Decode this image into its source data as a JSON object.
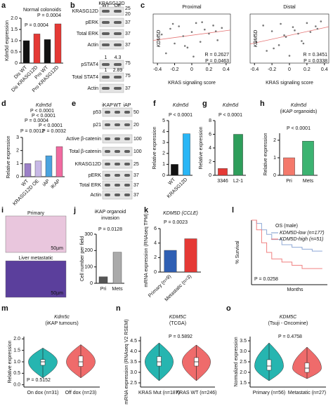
{
  "chart_data": [
    {
      "type": "bar",
      "panel": "a",
      "title": "Normal colonoids",
      "ylabel": "Kdm5d expression",
      "categories": [
        "Dis WT",
        "Dis KRASG12D",
        "Pro WT",
        "Pro KRASG12D"
      ],
      "values": [
        1.0,
        1.3,
        1.05,
        1.75
      ],
      "colors": [
        "#111111",
        "#e53935",
        "#111111",
        "#e53935"
      ],
      "ylim": [
        0,
        2
      ],
      "yticks": [
        0,
        0.5,
        {
          "value": 1,
          "label": "1.0"
        },
        1.5,
        {
          "value": 2,
          "label": "2.0"
        }
      ],
      "annotations": [
        "P = 0.0004",
        "P = 0.0004"
      ]
    },
    {
      "type": "scatter",
      "panel": "c",
      "title": "Proximal",
      "xlabel": "KRAS signaling score",
      "ylabel": "KDM5D",
      "color": "#777777",
      "x": [
        -0.35,
        -0.3,
        -0.25,
        -0.2,
        -0.15,
        -0.1,
        -0.05,
        0,
        0.05,
        0.1,
        0.15,
        0.2,
        0.25,
        0.3,
        0.35,
        -0.22,
        0.02,
        0.12,
        0.28,
        -0.08
      ],
      "y": [
        0.5,
        -1.8,
        1.2,
        -0.6,
        1.5,
        0.3,
        -1.1,
        0.8,
        1.9,
        -0.4,
        1.1,
        0.6,
        1.6,
        -0.2,
        1.3,
        1.8,
        -2.2,
        2.0,
        0.9,
        -0.9
      ],
      "xlim": [
        -0.45,
        0.45
      ],
      "xticks": [
        -0.4,
        -0.2,
        0,
        0.2,
        0.4
      ],
      "ylim": [
        -3,
        3
      ],
      "annotations": [
        "R = 0.2627",
        "P = 0.0463"
      ]
    },
    {
      "type": "scatter",
      "title": "Distal",
      "xlabel": "KRAS signaling score",
      "ylabel": "KDM5D",
      "color": "#777777",
      "x": [
        -0.38,
        -0.3,
        -0.26,
        -0.2,
        -0.12,
        -0.1,
        -0.04,
        0,
        0.04,
        0.1,
        0.14,
        0.2,
        0.24,
        0.3,
        0.36,
        -0.18,
        0.06,
        0.16,
        0.32,
        -0.06
      ],
      "y": [
        -0.4,
        1.6,
        -1.5,
        0.9,
        -0.8,
        1.8,
        0.2,
        -2.1,
        1.4,
        0.6,
        -0.3,
        1.9,
        0.8,
        1.5,
        2.1,
        -1.2,
        1.0,
        -0.6,
        1.2,
        0.4
      ],
      "xlim": [
        -0.45,
        0.45
      ],
      "xticks": [
        -0.4,
        -0.2,
        0,
        0.2,
        0.4
      ],
      "ylim": [
        -3,
        3
      ],
      "annotations": [
        "R = 0.3451",
        "P = 0.0338"
      ]
    },
    {
      "type": "bar",
      "panel": "d",
      "title": "Kdm5d",
      "ylabel": "Relative expression",
      "categories": [
        "WT",
        "KRASG12D OE",
        "iAP",
        "iKAP"
      ],
      "values": [
        1.0,
        1.2,
        1.6,
        2.3
      ],
      "colors": [
        "#9b7fc7",
        "#c7b8e6",
        "#4aa3df",
        "#f06aa0"
      ],
      "ylim": [
        0,
        3
      ],
      "yticks": [
        0,
        1,
        2,
        3
      ],
      "annotations": [
        "P < 0.0001",
        "P < 0.0001",
        "P = 0.0004",
        "P < 0.0001",
        "P = 0.0012",
        "P = 0.0032"
      ]
    },
    {
      "type": "bar",
      "panel": "f",
      "title": "Kdm5d",
      "ylabel": "Relative expression",
      "categories": [
        "WT",
        "KRASG12D"
      ],
      "values": [
        1.0,
        3.8
      ],
      "colors": [
        "#111111",
        "#29b6f6"
      ],
      "ylim": [
        0,
        5
      ],
      "yticks": [
        0,
        1,
        2,
        3,
        4,
        5
      ],
      "annotations": [
        "P < 0.0001"
      ]
    },
    {
      "type": "bar",
      "panel": "g",
      "title": "Kdm5d",
      "ylabel": "Relative expression",
      "categories": [
        "3346",
        "L2-1"
      ],
      "values": [
        1.0,
        6.0
      ],
      "colors": [
        "#e53935",
        "#2e9e5b"
      ],
      "ylim": [
        0,
        8
      ],
      "yticks": [
        0,
        2,
        4,
        6,
        8
      ],
      "annotations": [
        "P < 0.0001"
      ]
    },
    {
      "type": "bar",
      "panel": "h",
      "title": "Kdm5d",
      "subtitle": "(iKAP organoids)",
      "ylabel": "Relative expression",
      "categories": [
        "Pri",
        "Mets"
      ],
      "values": [
        1.0,
        1.95
      ],
      "colors": [
        "#f4796b",
        "#3cb371"
      ],
      "ylim": [
        0,
        2.4
      ],
      "yticks": [
        0,
        1,
        2
      ],
      "annotations": [
        "P < 0.0001"
      ]
    },
    {
      "type": "bar",
      "panel": "j",
      "title": "iKAP organoid",
      "subtitle": "invasion",
      "ylabel": "Cell number per field",
      "categories": [
        "Pri",
        "Mets"
      ],
      "values": [
        40,
        190
      ],
      "colors": [
        "#555555",
        "#aaaaaa"
      ],
      "ylim": [
        0,
        300
      ],
      "yticks": [
        0,
        100,
        200,
        300
      ],
      "annotations": [
        "P = 0.0128"
      ]
    },
    {
      "type": "bar",
      "panel": "k",
      "title": "KDM5D (CCLE)",
      "ylabel": "mRNA expression (RNAseq TPM)",
      "categories": [
        "Primary (n=9)",
        "Metastatic (n=3)"
      ],
      "values": [
        3.0,
        4.6
      ],
      "colors": [
        "#2f5fb3",
        "#e53935"
      ],
      "ylim": [
        0,
        6
      ],
      "yticks": [
        0,
        2,
        4,
        6
      ],
      "annotations": [
        "P = 0.0023"
      ]
    },
    {
      "type": "line",
      "panel": "l",
      "title": "OS (male)",
      "ylabel": "% Survival",
      "xlabel": "Months",
      "xlim": [
        0,
        150
      ],
      "ylim": [
        0,
        100
      ],
      "series": [
        {
          "name": "KDM5D-low (n=177)",
          "color": "#8fa9d6",
          "x": [
            0,
            10,
            20,
            30,
            40,
            60,
            80,
            100,
            120,
            140
          ],
          "values": [
            100,
            95,
            85,
            78,
            70,
            62,
            58,
            55,
            52,
            52
          ]
        },
        {
          "name": "KDM5D-high (n=51)",
          "color": "#f08080",
          "x": [
            0,
            10,
            20,
            30,
            40,
            60,
            80,
            100,
            120,
            140
          ],
          "values": [
            100,
            85,
            65,
            50,
            40,
            35,
            30,
            25,
            25,
            25
          ]
        }
      ],
      "annotations": [
        "P = 0.0258"
      ]
    },
    {
      "type": "violin",
      "panel": "m",
      "title": "Kdm5c",
      "subtitle": "(iKAP tumours)",
      "ylabel": "Relative expression",
      "categories": [
        "On dox (n=31)",
        "Off dox (n=23)"
      ],
      "colors": [
        "#26b5b0",
        "#ef6b6b"
      ],
      "mins": [
        0.3,
        0.3
      ],
      "q1": [
        0.85,
        0.8
      ],
      "medians": [
        1.0,
        1.0
      ],
      "q3": [
        1.1,
        1.25
      ],
      "maxs": [
        1.6,
        1.75
      ],
      "ylim": [
        -0.1,
        2.1
      ],
      "yticks": [
        {
          "value": 0,
          "label": "0.0"
        },
        0.5,
        {
          "value": 1,
          "label": "1.0"
        },
        1.5,
        {
          "value": 2,
          "label": "2.0"
        }
      ],
      "annotations": [
        "P = 0.5152"
      ]
    },
    {
      "type": "violin",
      "panel": "n",
      "title": "KDM5C",
      "subtitle": "(TCGA)",
      "ylabel": "mRNA expression (RNAseq V2 RSEM)",
      "categories": [
        "KRAS Mut (n=187)",
        "KRAS WT (n=246)"
      ],
      "colors": [
        "#26b5b0",
        "#ef6b6b"
      ],
      "mins": [
        2.6,
        2.6
      ],
      "q1": [
        3.3,
        3.3
      ],
      "medians": [
        3.5,
        3.5
      ],
      "q3": [
        3.75,
        3.7
      ],
      "maxs": [
        4.4,
        4.3
      ],
      "ylim": [
        2.3,
        4.7
      ],
      "yticks": [
        2.5,
        {
          "value": 3,
          "label": "3.0"
        },
        3.5,
        {
          "value": 4,
          "label": "4.0"
        },
        4.5
      ],
      "annotations": [
        "P = 0.5892"
      ]
    },
    {
      "type": "violin",
      "panel": "o",
      "title": "KDM5C",
      "subtitle": "(Tsuji - Oncomine)",
      "ylabel": "Normalized expression",
      "categories": [
        "Primary (n=56)",
        "Metastatic (n=27)"
      ],
      "colors": [
        "#26b5b0",
        "#ef6b6b"
      ],
      "mins": [
        1.6,
        1.7
      ],
      "q1": [
        2.1,
        2.0
      ],
      "medians": [
        2.3,
        2.2
      ],
      "q3": [
        2.6,
        2.45
      ],
      "maxs": [
        3.4,
        3.2
      ],
      "ylim": [
        1.3,
        3.7
      ],
      "yticks": [
        1.5,
        {
          "value": 2,
          "label": "2.0"
        },
        2.5,
        {
          "value": 3,
          "label": "3.0"
        },
        3.5
      ],
      "annotations": [
        "P = 0.4758"
      ]
    }
  ],
  "blots": [
    {
      "panel": "b",
      "group": "KRASG12D",
      "columns": [
        "WT",
        "OE"
      ],
      "rows": [
        "KRASG12D",
        "pERK",
        "Total ERK",
        "Actin",
        "pSTAT4",
        "Total STAT4",
        "Actin"
      ],
      "mw": [
        "25",
        "20",
        "37",
        "37",
        "37",
        "75",
        "75",
        "37"
      ],
      "quant": [
        [
          1,
          4.3
        ],
        [
          1,
          2.89
        ]
      ]
    },
    {
      "panel": "e",
      "columns": [
        "iKAP",
        "WT",
        "iAP"
      ],
      "rows": [
        "p53",
        "p21",
        "Active β-catenin",
        "Total β-catenin",
        "KRASG12D",
        "pERK",
        "Total ERK",
        "Actin"
      ],
      "mw": [
        "50",
        "20",
        "100",
        "100",
        "25",
        "37",
        "37",
        "37"
      ]
    }
  ],
  "images": {
    "panel": "i",
    "labels": [
      "Primary",
      "Liver metastatic"
    ],
    "scales": [
      "50µm",
      "50µm"
    ]
  }
}
